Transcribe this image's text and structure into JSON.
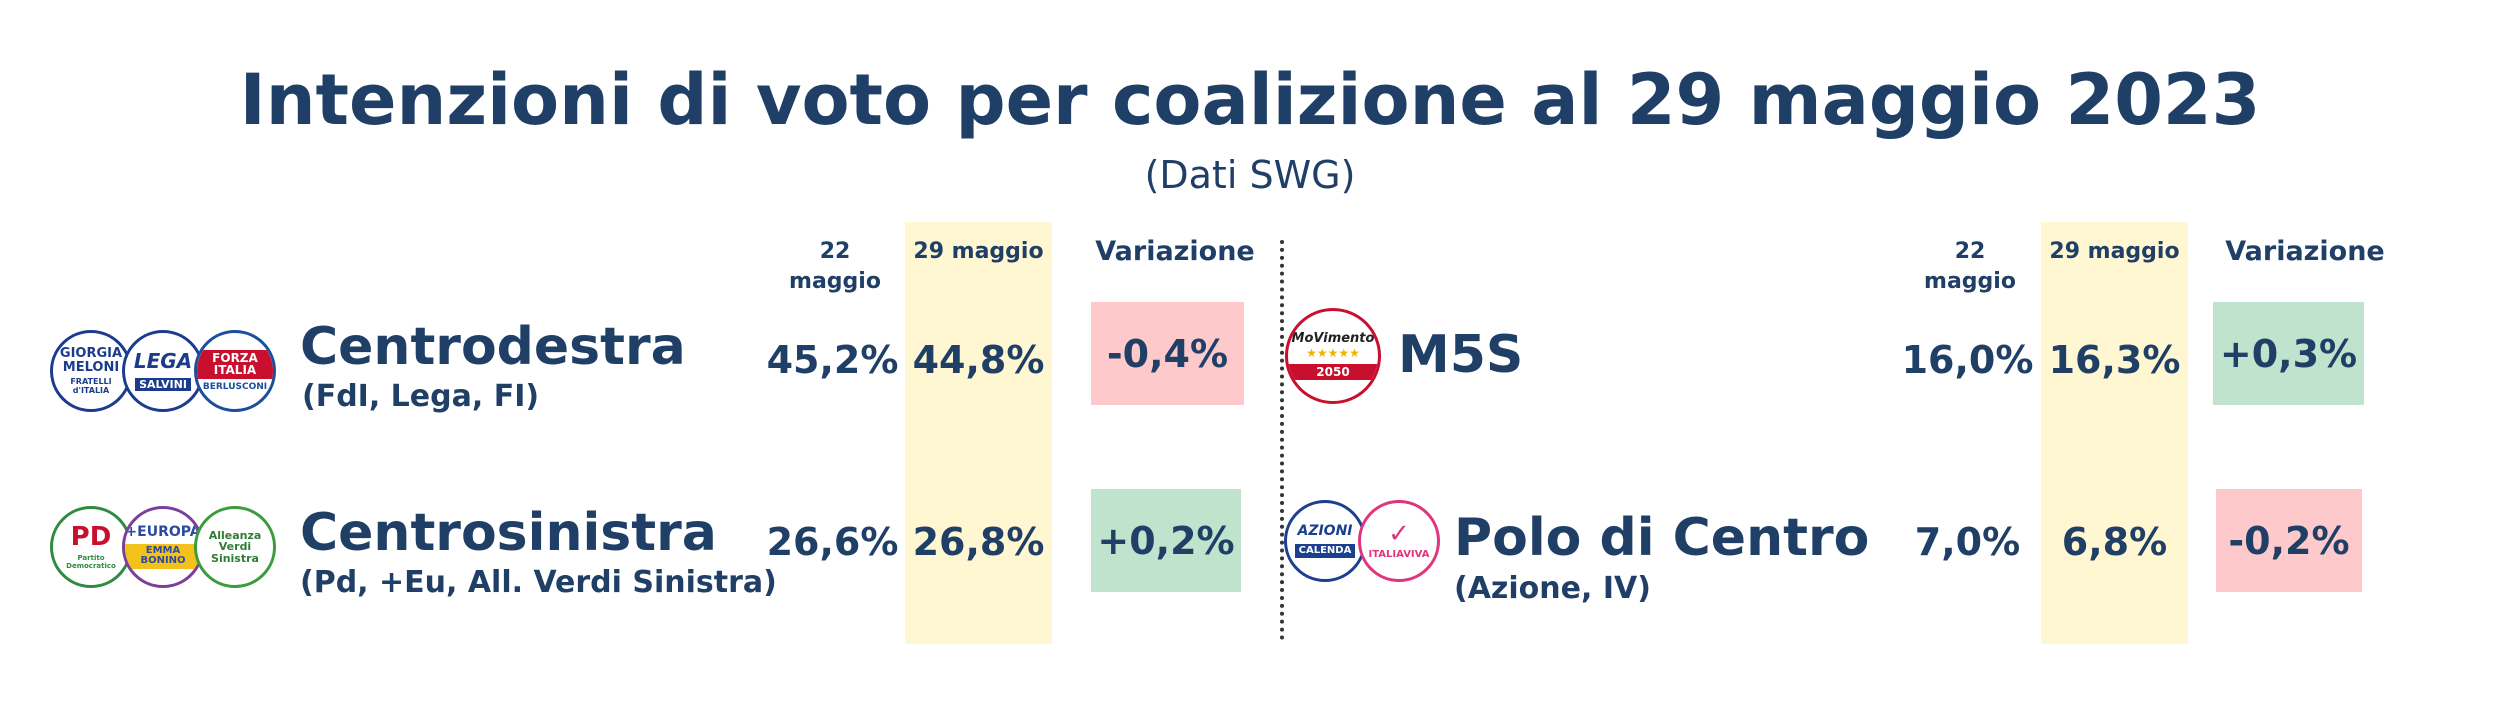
{
  "title": "Intenzioni di voto per coalizione al 29 maggio 2023",
  "subtitle": "(Dati SWG)",
  "headers": {
    "prev": "22 maggio",
    "curr": "29 maggio",
    "change": "Variazione"
  },
  "colors": {
    "text": "#1f3f66",
    "highlight": "#fff7d2",
    "negative": "#fdc9cb",
    "positive": "#bfe3cd"
  },
  "rows": [
    {
      "name": "Centrodestra",
      "sub": "(FdI, Lega, FI)",
      "prev": "45,2%",
      "curr": "44,8%",
      "change": "-0,4%",
      "trend": "negative"
    },
    {
      "name": "Centrosinistra",
      "sub": "(Pd, +Eu, All. Verdi Sinistra)",
      "prev": "26,6%",
      "curr": "26,8%",
      "change": "+0,2%",
      "trend": "positive"
    },
    {
      "name": "M5S",
      "sub": "",
      "prev": "16,0%",
      "curr": "16,3%",
      "change": "+0,3%",
      "trend": "positive"
    },
    {
      "name": "Polo di Centro",
      "sub": "(Azione, IV)",
      "prev": "7,0%",
      "curr": "6,8%",
      "change": "-0,2%",
      "trend": "negative"
    }
  ],
  "logos": {
    "fdi": "GIORGIA MELONI",
    "fdi_sub": "FRATELLI d'ITALIA",
    "lega": "LEGA",
    "lega_sub": "SALVINI",
    "fi": "FORZA ITALIA",
    "fi_sub": "BERLUSCONI",
    "pd": "PD",
    "pd_sub": "Partito Democratico",
    "eu": "+EUROPA",
    "eu_sub": "EMMA BONINO",
    "avs": "Alleanza Verdi Sinistra",
    "m5s": "MoVimento",
    "m5s_stars": "★★★★★",
    "m5s_year": "2050",
    "azione": "AZIONI",
    "azione_sub": "CALENDA",
    "iv": "ITALIAVIVA"
  },
  "chart_data": {
    "type": "table",
    "title": "Intenzioni di voto per coalizione al 29 maggio 2023",
    "subtitle": "(Dati SWG)",
    "columns": [
      "22 maggio",
      "29 maggio",
      "Variazione"
    ],
    "categories": [
      "Centrodestra",
      "Centrosinistra",
      "M5S",
      "Polo di Centro"
    ],
    "series": [
      {
        "name": "22 maggio",
        "values": [
          45.2,
          26.6,
          16.0,
          7.0
        ]
      },
      {
        "name": "29 maggio",
        "values": [
          44.8,
          26.8,
          16.3,
          6.8
        ]
      },
      {
        "name": "Variazione",
        "values": [
          -0.4,
          0.2,
          0.3,
          -0.2
        ]
      }
    ]
  }
}
